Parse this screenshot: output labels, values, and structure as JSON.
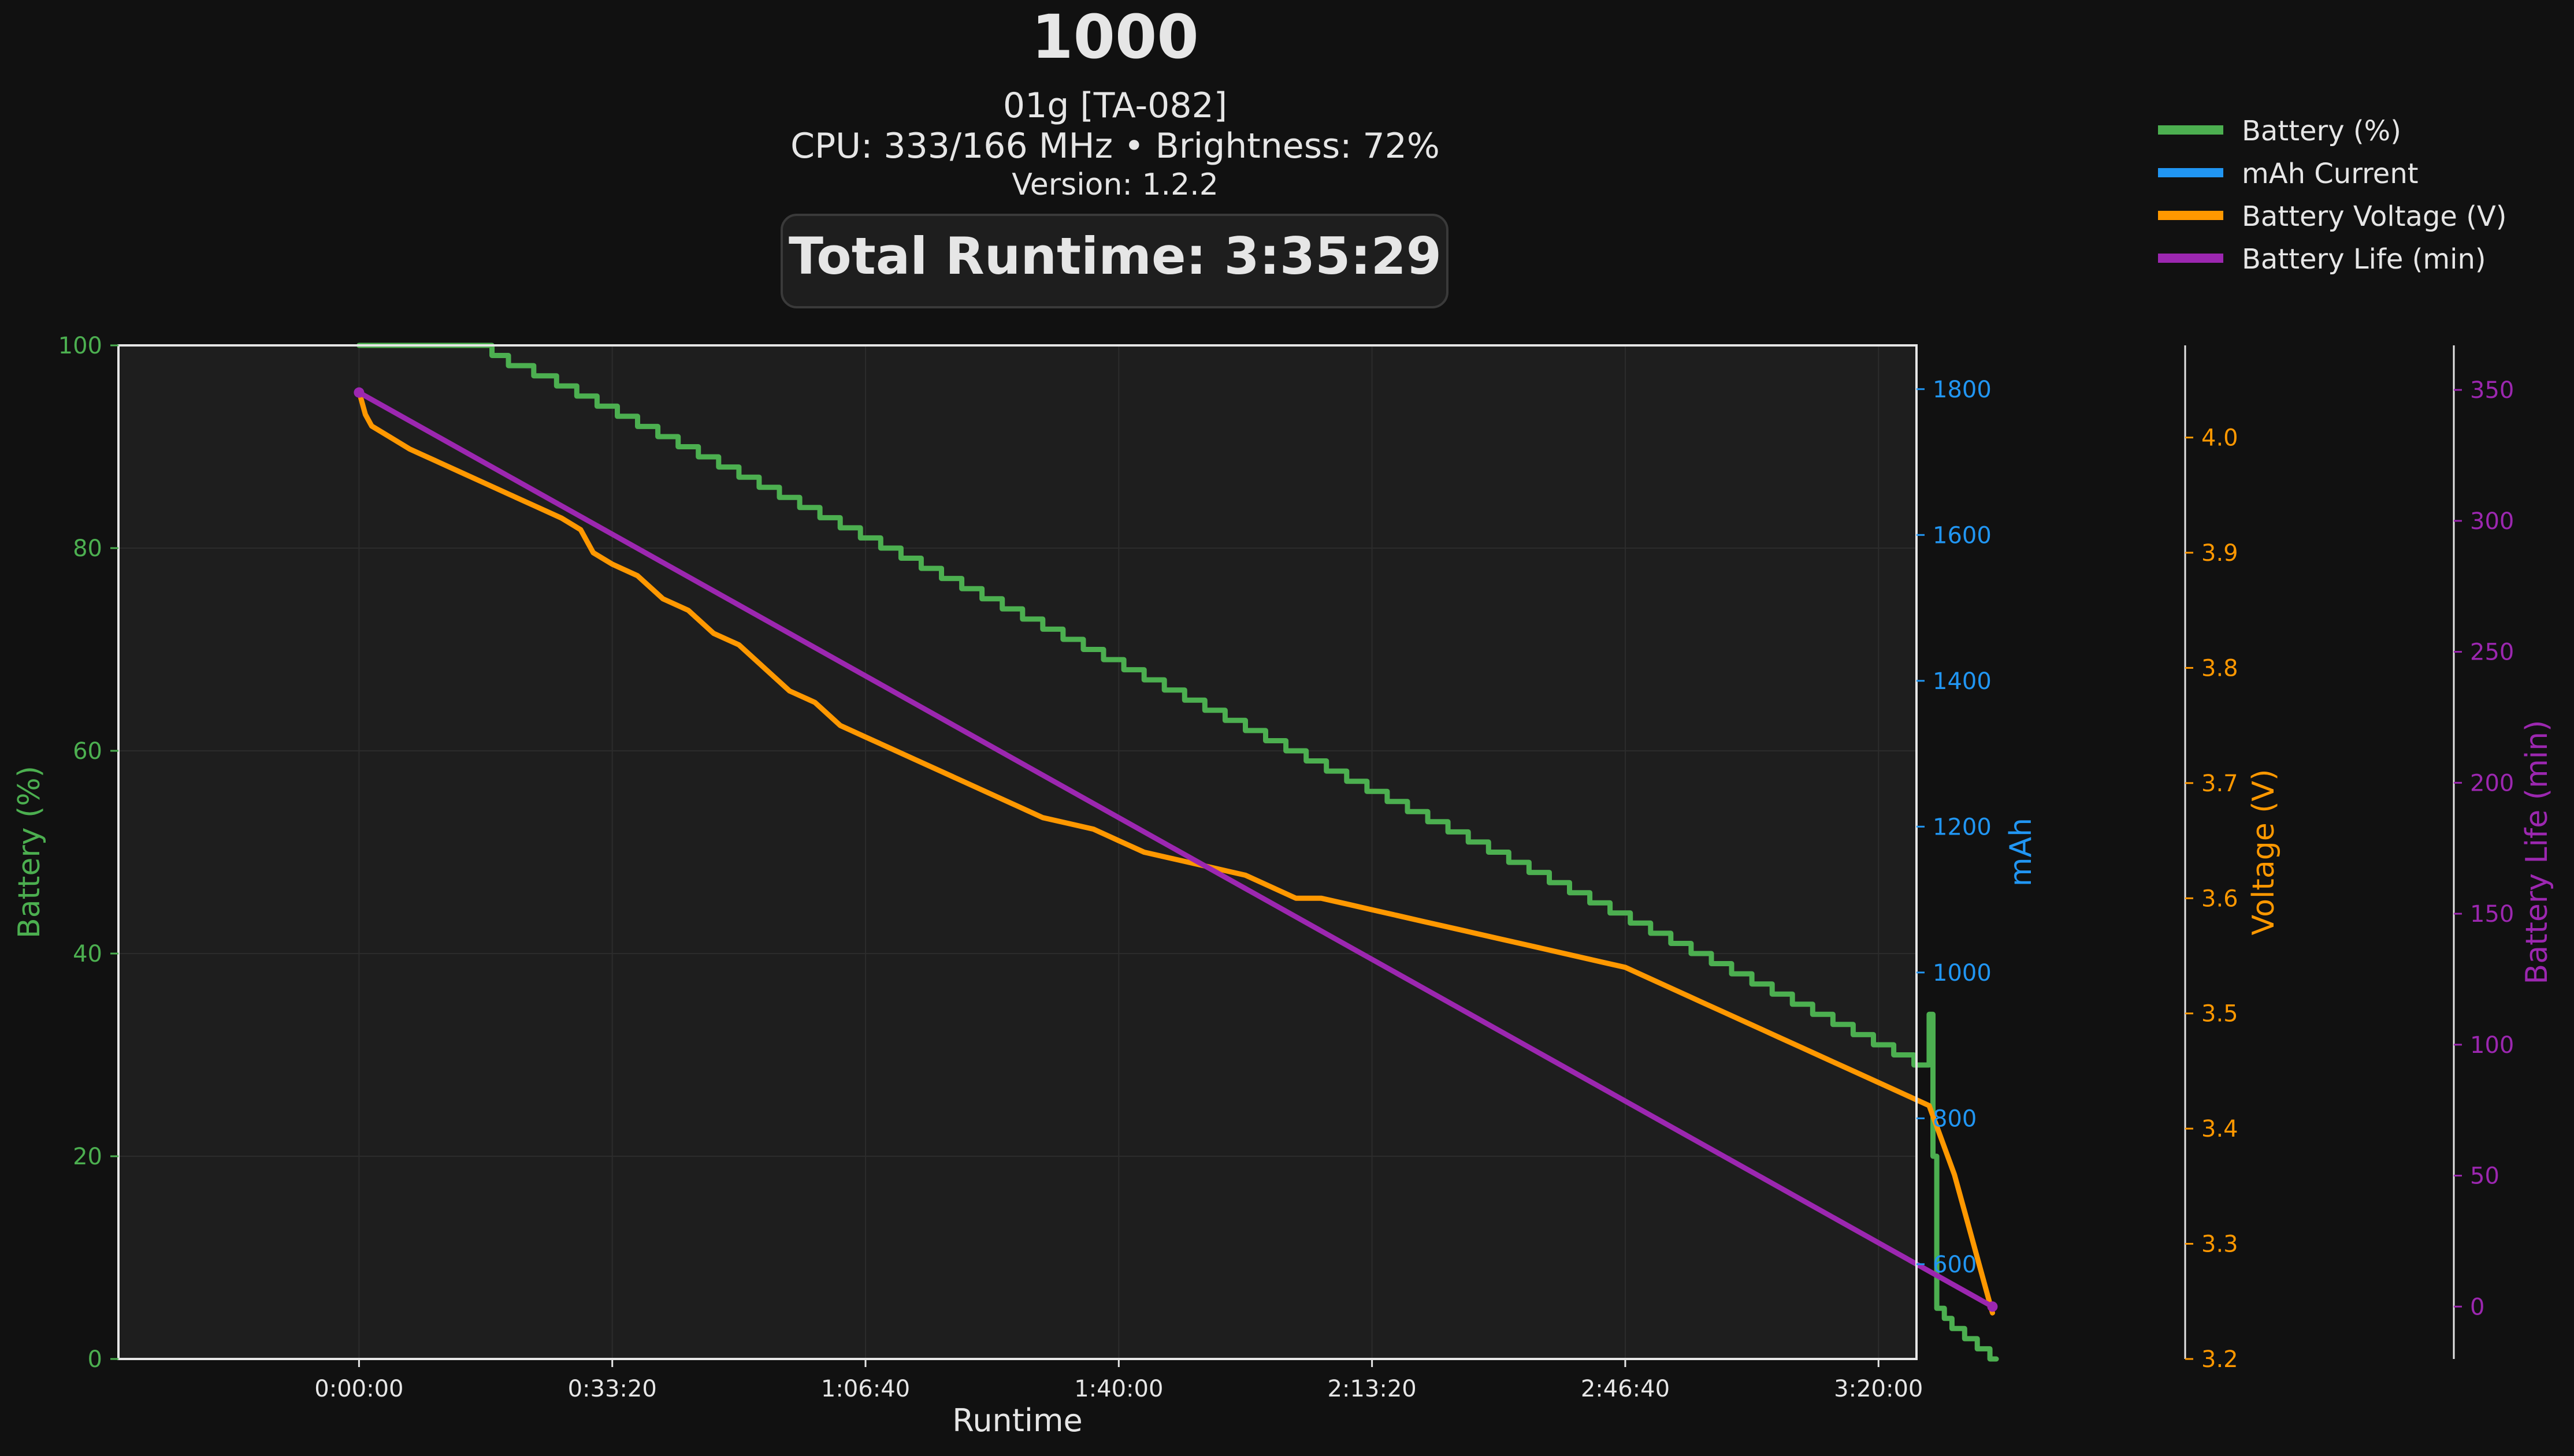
{
  "header": {
    "title": "1000",
    "device": "01g [TA-082]",
    "cpu_line": "CPU: 333/166 MHz • Brightness: 72%",
    "version": "Version: 1.2.2",
    "total_runtime": "Total Runtime: 3:35:29"
  },
  "legend": {
    "position": "top-right",
    "items": [
      {
        "label": "Battery (%)",
        "color": "#4caf50"
      },
      {
        "label": "mAh Current",
        "color": "#2196f3"
      },
      {
        "label": "Battery Voltage (V)",
        "color": "#ff9800"
      },
      {
        "label": "Battery Life (min)",
        "color": "#9c27b0"
      }
    ]
  },
  "colors": {
    "background": "#111111",
    "plot_background": "#1e1e1e",
    "battery": "#4caf50",
    "mah": "#2196f3",
    "voltage": "#ff9800",
    "life": "#9c27b0",
    "axis_text": "#e6e6e6"
  },
  "chart_data": {
    "type": "line",
    "xlabel": "Runtime",
    "x_unit": "seconds",
    "xlim": [
      -1900,
      12300
    ],
    "x_ticks": [
      {
        "value": 0,
        "label": "0:00:00"
      },
      {
        "value": 2000,
        "label": "0:33:20"
      },
      {
        "value": 4000,
        "label": "1:06:40"
      },
      {
        "value": 6000,
        "label": "1:40:00"
      },
      {
        "value": 8000,
        "label": "2:13:20"
      },
      {
        "value": 10000,
        "label": "2:46:40"
      },
      {
        "value": 12000,
        "label": "3:20:00"
      }
    ],
    "axes": {
      "battery": {
        "label": "Battery (%)",
        "ylim": [
          0,
          100
        ],
        "ticks": [
          0,
          20,
          40,
          60,
          80,
          100
        ]
      },
      "mah": {
        "label": "mAh",
        "ylim": [
          470,
          1860
        ],
        "ticks": [
          600,
          800,
          1000,
          1200,
          1400,
          1600,
          1800
        ]
      },
      "voltage": {
        "label": "Voltage (V)",
        "ylim": [
          3.2,
          4.08
        ],
        "ticks": [
          3.2,
          3.3,
          3.4,
          3.5,
          3.6,
          3.7,
          3.8,
          3.9,
          4.0
        ]
      },
      "life": {
        "label": "Battery Life (min)",
        "ylim": [
          -20,
          367
        ],
        "ticks": [
          0,
          50,
          100,
          150,
          200,
          250,
          300,
          350
        ]
      }
    },
    "grid": true,
    "series": [
      {
        "name": "Battery (%)",
        "axis": "battery",
        "step": true,
        "x": [
          0,
          1000,
          1050,
          1180,
          1380,
          1560,
          1720,
          1880,
          2040,
          2200,
          2360,
          2520,
          2680,
          2840,
          3000,
          3160,
          3320,
          3480,
          3640,
          3800,
          3960,
          4120,
          4280,
          4440,
          4600,
          4760,
          4920,
          5080,
          5240,
          5400,
          5560,
          5720,
          5880,
          6040,
          6200,
          6360,
          6520,
          6680,
          6840,
          7000,
          7160,
          7320,
          7480,
          7640,
          7800,
          7960,
          8120,
          8280,
          8440,
          8600,
          8760,
          8920,
          9080,
          9240,
          9400,
          9560,
          9720,
          9880,
          10040,
          10200,
          10360,
          10520,
          10680,
          10840,
          11000,
          11160,
          11320,
          11480,
          11640,
          11800,
          11960,
          12120,
          12280,
          12400,
          12430,
          12460,
          12520,
          12580,
          12680,
          12780,
          12880,
          12930
        ],
        "y": [
          100,
          100,
          99,
          98,
          97,
          96,
          95,
          94,
          93,
          92,
          91,
          90,
          89,
          88,
          87,
          86,
          85,
          84,
          83,
          82,
          81,
          80,
          79,
          78,
          77,
          76,
          75,
          74,
          73,
          72,
          71,
          70,
          69,
          68,
          67,
          66,
          65,
          64,
          63,
          62,
          61,
          60,
          59,
          58,
          57,
          56,
          55,
          54,
          53,
          52,
          51,
          50,
          49,
          48,
          47,
          46,
          45,
          44,
          43,
          42,
          41,
          40,
          39,
          38,
          37,
          36,
          35,
          34,
          33,
          32,
          31,
          30,
          29,
          34,
          20,
          5,
          4,
          3,
          2,
          1,
          0,
          0
        ]
      },
      {
        "name": "Battery Voltage (V)",
        "axis": "voltage",
        "step": false,
        "x": [
          0,
          50,
          100,
          250,
          400,
          500,
          600,
          800,
          1000,
          1200,
          1400,
          1600,
          1750,
          1850,
          2000,
          2200,
          2400,
          2600,
          2800,
          3000,
          3200,
          3400,
          3600,
          3800,
          4000,
          4200,
          4400,
          4600,
          4800,
          5000,
          5200,
          5400,
          5600,
          5800,
          6000,
          6200,
          6400,
          6600,
          6800,
          7000,
          7200,
          7400,
          7600,
          7800,
          8000,
          8200,
          8400,
          8600,
          8800,
          9000,
          9200,
          9400,
          9600,
          9800,
          10000,
          10200,
          10400,
          10600,
          10800,
          11000,
          11200,
          11400,
          11600,
          11800,
          12000,
          12200,
          12400,
          12500,
          12600,
          12700,
          12800,
          12900
        ],
        "y": [
          4.04,
          4.02,
          4.01,
          4.0,
          3.99,
          3.985,
          3.98,
          3.97,
          3.96,
          3.95,
          3.94,
          3.93,
          3.92,
          3.9,
          3.89,
          3.88,
          3.86,
          3.85,
          3.83,
          3.82,
          3.8,
          3.78,
          3.77,
          3.75,
          3.74,
          3.73,
          3.72,
          3.71,
          3.7,
          3.69,
          3.68,
          3.67,
          3.665,
          3.66,
          3.65,
          3.64,
          3.635,
          3.63,
          3.625,
          3.62,
          3.61,
          3.6,
          3.6,
          3.595,
          3.59,
          3.585,
          3.58,
          3.575,
          3.57,
          3.565,
          3.56,
          3.555,
          3.55,
          3.545,
          3.54,
          3.53,
          3.52,
          3.51,
          3.5,
          3.49,
          3.48,
          3.47,
          3.46,
          3.45,
          3.44,
          3.43,
          3.42,
          3.39,
          3.36,
          3.32,
          3.28,
          3.24
        ]
      },
      {
        "name": "Battery Life (min)",
        "axis": "life",
        "step": false,
        "x": [
          0,
          12900
        ],
        "y": [
          349,
          0
        ]
      }
    ]
  }
}
